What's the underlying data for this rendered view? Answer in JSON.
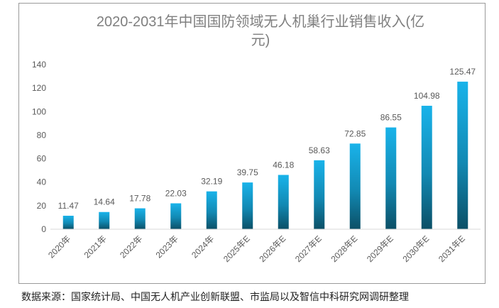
{
  "chart_data": {
    "type": "bar",
    "title": "2020-2031年中国国防领域无人机巢行业销售收入(亿元)",
    "title_lines": [
      "2020-2031年中国国防领域无人机巢行业销售收入(亿",
      "元)"
    ],
    "categories": [
      "2020年",
      "2021年",
      "2022年",
      "2023年",
      "2024年",
      "2025年E",
      "2026年E",
      "2027年E",
      "2028年E",
      "2029年E",
      "2030年E",
      "2031年E"
    ],
    "values": [
      11.47,
      14.64,
      17.78,
      22.03,
      32.19,
      39.75,
      46.18,
      58.63,
      72.85,
      86.55,
      104.98,
      125.47
    ],
    "data_labels": [
      "11.47",
      "14.64",
      "17.78",
      "22.03",
      "32.19",
      "39.75",
      "46.18",
      "58.63",
      "72.85",
      "86.55",
      "104.98",
      "125.47"
    ],
    "y_ticks": [
      "0",
      "20",
      "40",
      "60",
      "80",
      "100",
      "120",
      "140"
    ],
    "ylim": [
      0,
      140
    ],
    "xlabel": "",
    "ylabel": "",
    "grid": false,
    "legend": "none",
    "colors": {
      "bar_top": "#19b3ea",
      "bar_bottom": "#0b4f66",
      "text": "#595959",
      "title": "#7f7f7f",
      "axis": "#d9d9d9"
    }
  },
  "source_note": "数据来源：国家统计局、中国无人机产业创新联盟、市监局以及智信中科研究网调研整理"
}
